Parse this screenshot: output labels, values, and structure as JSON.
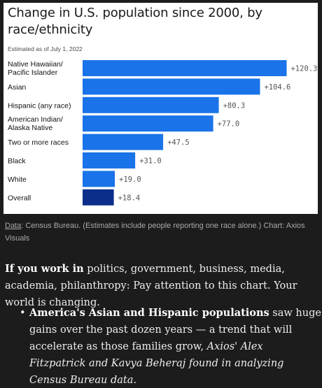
{
  "chart": {
    "title": "Change in U.S. population since 2000, by race/ethnicity",
    "subtitle": "Estimated as of July 1, 2022"
  },
  "chart_data": {
    "type": "bar",
    "orientation": "horizontal",
    "title": "Change in U.S. population since 2000, by race/ethnicity",
    "subtitle": "Estimated as of July 1, 2022",
    "unit": "%",
    "xlabel": "",
    "ylabel": "",
    "xlim": [
      0,
      130
    ],
    "grid": false,
    "categories": [
      [
        "Native Hawaiian/",
        "Pacific Islander"
      ],
      [
        "Asian"
      ],
      [
        "Hispanic (any race)"
      ],
      [
        "American Indian/",
        "Alaska Native"
      ],
      [
        "Two or more races"
      ],
      [
        "Black"
      ],
      [
        "White"
      ],
      [
        "Overall"
      ]
    ],
    "values": [
      120.3,
      104.6,
      80.3,
      77.0,
      47.5,
      31.0,
      19.0,
      18.4
    ],
    "value_labels": [
      "+120.3%",
      "+104.6",
      "+80.3",
      "+77.0",
      "+47.5",
      "+31.0",
      "+19.0",
      "+18.4"
    ],
    "colors": [
      "#1a73e8",
      "#1a73e8",
      "#1a73e8",
      "#1a73e8",
      "#1a73e8",
      "#1a73e8",
      "#1a73e8",
      "#0b2e8a"
    ],
    "label_color": "#555555"
  },
  "source": {
    "data_link": "Data",
    "text": ": Census Bureau. (Estimates include people reporting one race alone.) Chart: Axios Visuals"
  },
  "lede": {
    "bold": "If you work in",
    "text": " politics, government, business, media, academia, philanthropy: Pay attention to this chart. Your world is changing."
  },
  "bullet": {
    "bold": "America's Asian and Hispanic populations",
    "text": " saw huge gains over the past dozen years — a trend that will accelerate as those families grow, ",
    "italic": "Axios' Alex Fitzpatrick and Kavya Beheraj found in analyzing Census Bureau data",
    "end": "."
  }
}
